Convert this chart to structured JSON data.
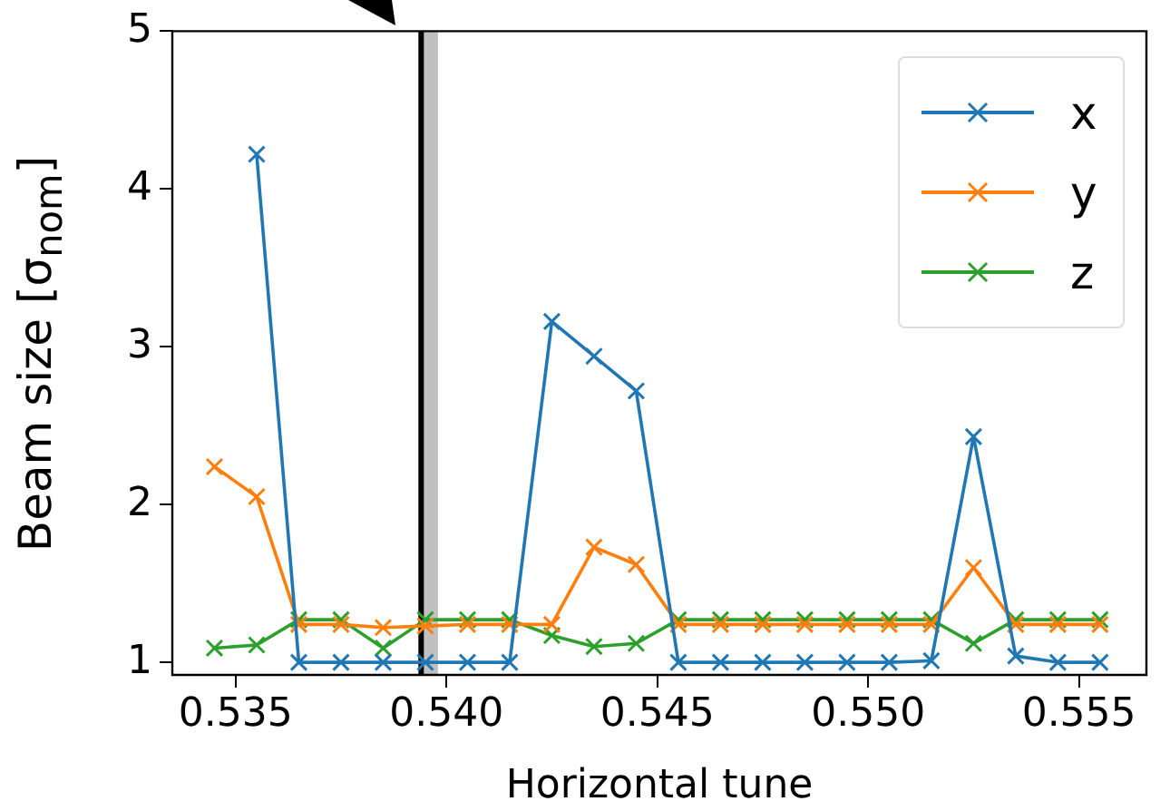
{
  "chart_data": {
    "type": "line",
    "xlabel": "Horizontal tune",
    "ylabel": "Beam size [σ$_{nom}$]",
    "x": [
      0.5345,
      0.5355,
      0.5365,
      0.5375,
      0.5385,
      0.5395,
      0.5405,
      0.5415,
      0.5425,
      0.5435,
      0.5445,
      0.5455,
      0.5465,
      0.5475,
      0.5485,
      0.5495,
      0.5505,
      0.5515,
      0.5525,
      0.5535,
      0.5545,
      0.5555
    ],
    "series": [
      {
        "name": "x",
        "color": "#1f77b4",
        "values": [
          null,
          4.22,
          1.0,
          1.0,
          1.0,
          1.0,
          1.0,
          1.0,
          3.16,
          2.94,
          2.72,
          1.0,
          1.0,
          1.0,
          1.0,
          1.0,
          1.0,
          1.01,
          2.43,
          1.04,
          1.0,
          1.0
        ]
      },
      {
        "name": "y",
        "color": "#ff7f0e",
        "values": [
          2.24,
          2.05,
          1.24,
          1.24,
          1.22,
          1.23,
          1.24,
          1.24,
          1.24,
          1.73,
          1.62,
          1.24,
          1.24,
          1.24,
          1.24,
          1.24,
          1.24,
          1.24,
          1.6,
          1.24,
          1.24,
          1.24
        ]
      },
      {
        "name": "z",
        "color": "#2ca02c",
        "values": [
          1.09,
          1.11,
          1.27,
          1.27,
          1.09,
          1.27,
          1.27,
          1.27,
          1.17,
          1.1,
          1.12,
          1.27,
          1.27,
          1.27,
          1.27,
          1.27,
          1.27,
          1.27,
          1.12,
          1.27,
          1.27,
          1.27
        ]
      }
    ],
    "xlim": [
      0.5335,
      0.5566
    ],
    "ylim": [
      0.92,
      5
    ],
    "xticks": [
      {
        "value": 0.535,
        "label": "0.535"
      },
      {
        "value": 0.54,
        "label": "0.540"
      },
      {
        "value": 0.545,
        "label": "0.545"
      },
      {
        "value": 0.55,
        "label": "0.550"
      },
      {
        "value": 0.555,
        "label": "0.555"
      }
    ],
    "yticks": [
      1,
      2,
      3,
      4,
      5
    ],
    "ref_lines": [
      {
        "axis": "x",
        "value": 0.5394,
        "color": "#000000"
      }
    ],
    "bands": [
      {
        "axis": "x",
        "from": 0.5394,
        "to": 0.5398,
        "color": "#c0c0c0"
      }
    ],
    "grid": false,
    "legend": "top right",
    "marker": "cross",
    "line_style": "solid"
  }
}
